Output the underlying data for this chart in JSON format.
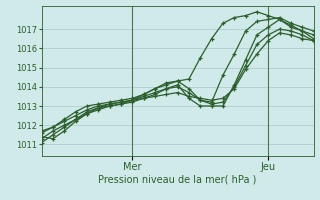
{
  "xlabel": "Pression niveau de la mer( hPa )",
  "bg_color": "#d0eaea",
  "plot_bg_color": "#d0eaea",
  "grid_color": "#a8c8c8",
  "line_color": "#2d5e2d",
  "ylim": [
    1010.4,
    1018.2
  ],
  "xlim": [
    0,
    72
  ],
  "yticks": [
    1011,
    1012,
    1013,
    1014,
    1015,
    1016,
    1017
  ],
  "xtick_positions": [
    24,
    60
  ],
  "xtick_labels": [
    "Mer",
    "Jeu"
  ],
  "vline_positions": [
    24,
    60
  ],
  "series": [
    {
      "x": [
        0,
        3,
        6,
        9,
        12,
        15,
        18,
        21,
        24,
        27,
        30,
        33,
        36,
        39,
        42,
        45,
        48,
        51,
        54,
        57,
        60,
        63,
        66,
        69,
        72
      ],
      "y": [
        1011.4,
        1011.3,
        1011.7,
        1012.2,
        1012.6,
        1012.9,
        1013.1,
        1013.2,
        1013.3,
        1013.6,
        1013.9,
        1014.1,
        1014.3,
        1014.4,
        1015.5,
        1016.5,
        1017.3,
        1017.6,
        1017.7,
        1017.9,
        1017.7,
        1017.5,
        1017.1,
        1016.9,
        1016.7
      ]
    },
    {
      "x": [
        0,
        3,
        6,
        9,
        12,
        15,
        18,
        21,
        24,
        27,
        30,
        33,
        36,
        39,
        42,
        45,
        48,
        51,
        54,
        57,
        60,
        63,
        66,
        69,
        72
      ],
      "y": [
        1011.6,
        1011.9,
        1012.3,
        1012.7,
        1013.0,
        1013.1,
        1013.2,
        1013.3,
        1013.4,
        1013.6,
        1013.9,
        1014.2,
        1014.3,
        1013.9,
        1013.3,
        1013.2,
        1014.6,
        1015.7,
        1016.9,
        1017.4,
        1017.5,
        1017.6,
        1017.3,
        1017.1,
        1016.9
      ]
    },
    {
      "x": [
        0,
        3,
        6,
        9,
        12,
        15,
        18,
        21,
        24,
        27,
        30,
        33,
        36,
        39,
        42,
        45,
        48,
        51,
        54,
        57,
        60,
        63,
        66,
        69,
        72
      ],
      "y": [
        1011.1,
        1011.5,
        1011.9,
        1012.3,
        1012.7,
        1012.9,
        1013.0,
        1013.1,
        1013.2,
        1013.4,
        1013.6,
        1013.9,
        1014.1,
        1013.4,
        1013.0,
        1013.0,
        1013.0,
        1014.1,
        1015.4,
        1016.7,
        1017.1,
        1017.5,
        1017.2,
        1016.9,
        1016.5
      ]
    },
    {
      "x": [
        0,
        3,
        6,
        9,
        12,
        15,
        18,
        21,
        24,
        27,
        30,
        33,
        36,
        39,
        42,
        45,
        48,
        51,
        54,
        57,
        60,
        63,
        66,
        69,
        72
      ],
      "y": [
        1011.7,
        1011.9,
        1012.2,
        1012.5,
        1012.8,
        1013.0,
        1013.1,
        1013.2,
        1013.3,
        1013.4,
        1013.5,
        1013.6,
        1013.7,
        1013.5,
        1013.4,
        1013.3,
        1013.4,
        1013.9,
        1014.9,
        1015.7,
        1016.4,
        1016.8,
        1016.7,
        1016.5,
        1016.4
      ]
    },
    {
      "x": [
        0,
        3,
        6,
        9,
        12,
        15,
        18,
        21,
        24,
        27,
        30,
        33,
        36,
        39,
        42,
        45,
        48,
        51,
        54,
        57,
        60,
        63,
        66,
        69,
        72
      ],
      "y": [
        1011.3,
        1011.7,
        1012.0,
        1012.3,
        1012.6,
        1012.8,
        1013.0,
        1013.1,
        1013.3,
        1013.5,
        1013.7,
        1013.9,
        1014.0,
        1013.7,
        1013.3,
        1013.1,
        1013.2,
        1014.0,
        1015.1,
        1016.2,
        1016.7,
        1017.0,
        1016.9,
        1016.7,
        1016.4
      ]
    }
  ]
}
